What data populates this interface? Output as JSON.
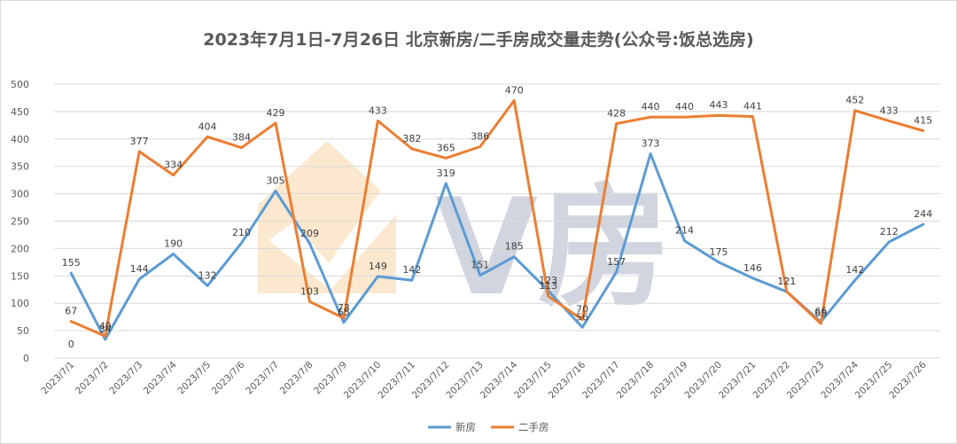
{
  "chart_data": {
    "type": "line",
    "title": "2023年7月1日-7月26日 北京新房/二手房成交量走势(公众号:饭总选房)",
    "xlabel": "",
    "ylabel": "",
    "ylim": [
      0,
      500
    ],
    "yticks": [
      0,
      50,
      100,
      150,
      200,
      250,
      300,
      350,
      400,
      450,
      500
    ],
    "grid": true,
    "legend_position": "bottom",
    "categories": [
      "2023/7/1",
      "2023/7/2",
      "2023/7/3",
      "2023/7/4",
      "2023/7/5",
      "2023/7/6",
      "2023/7/7",
      "2023/7/8",
      "2023/7/9",
      "2023/7/10",
      "2023/7/11",
      "2023/7/12",
      "2023/7/13",
      "2023/7/14",
      "2023/7/15",
      "2023/7/16",
      "2023/7/17",
      "2023/7/18",
      "2023/7/19",
      "2023/7/20",
      "2023/7/21",
      "2023/7/22",
      "2023/7/23",
      "2023/7/24",
      "2023/7/25",
      "2023/7/26"
    ],
    "series": [
      {
        "name": "新房",
        "color": "#5b9bd5",
        "values": [
          155,
          34,
          144,
          190,
          132,
          210,
          305,
          209,
          65,
          149,
          142,
          319,
          151,
          185,
          123,
          56,
          157,
          373,
          214,
          175,
          146,
          121,
          66,
          142,
          212,
          244
        ]
      },
      {
        "name": "二手房",
        "color": "#ed7d31",
        "values": [
          67,
          40,
          377,
          334,
          404,
          384,
          429,
          103,
          73,
          433,
          382,
          365,
          386,
          470,
          113,
          70,
          428,
          440,
          440,
          443,
          441,
          121,
          63,
          452,
          433,
          415
        ]
      }
    ],
    "annotations": [
      "0"
    ]
  },
  "watermark": {
    "text": "V房",
    "colors": [
      "#fbe3c4",
      "#c5cbd8"
    ]
  }
}
